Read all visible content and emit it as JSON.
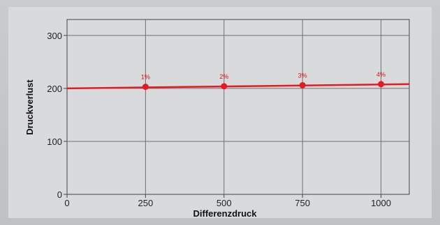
{
  "chart_data": {
    "type": "line",
    "title": "",
    "xlabel": "Differenzdruck",
    "ylabel": "Druckverlust",
    "xlim": [
      0,
      1090
    ],
    "ylim": [
      0,
      330
    ],
    "x_ticks": [
      0,
      250,
      500,
      750,
      1000
    ],
    "y_ticks": [
      0,
      100,
      200,
      300
    ],
    "grid": true,
    "series": [
      {
        "color": "#e31b23",
        "line": {
          "x": [
            0,
            1090
          ],
          "y": [
            200,
            208
          ]
        },
        "points": [
          {
            "x": 250,
            "y": 203,
            "label": "1%"
          },
          {
            "x": 500,
            "y": 204,
            "label": "2%"
          },
          {
            "x": 750,
            "y": 206,
            "label": "3%"
          },
          {
            "x": 1000,
            "y": 208,
            "label": "4%"
          }
        ]
      }
    ]
  }
}
